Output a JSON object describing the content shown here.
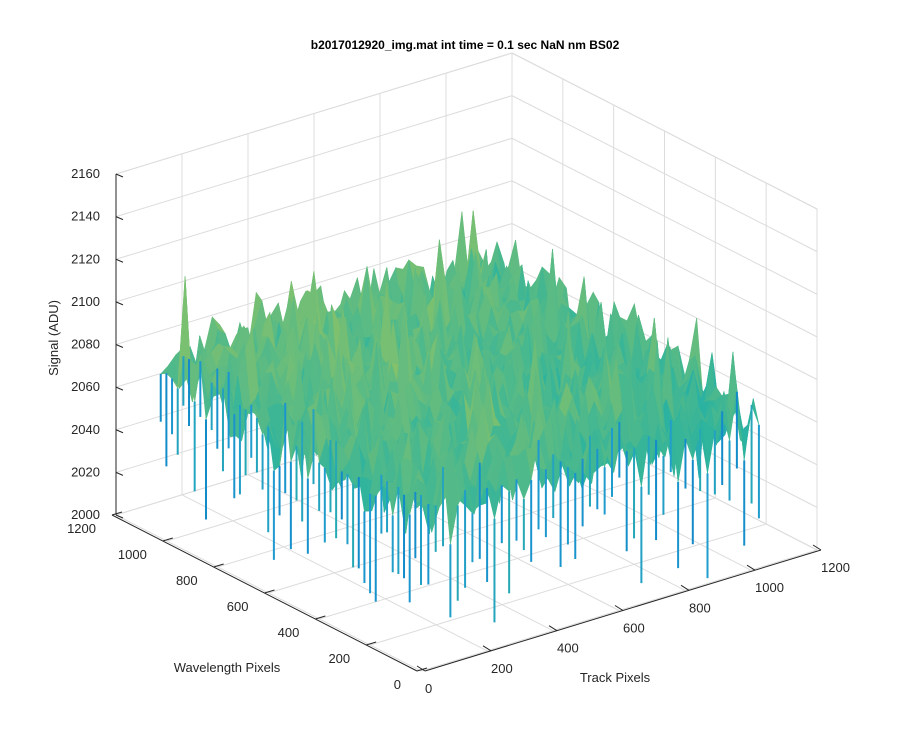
{
  "chart_data": {
    "type": "surface",
    "title": "b2017012920_img.mat int time = 0.1 sec  NaN nm BS02",
    "xlabel": "Track Pixels",
    "ylabel": "Wavelength Pixels",
    "zlabel": "Signal (ADU)",
    "xlim": [
      0,
      1200
    ],
    "ylim": [
      0,
      1200
    ],
    "zlim": [
      2000,
      2160
    ],
    "xticks": [
      "0",
      "200",
      "400",
      "600",
      "800",
      "1000",
      "1200"
    ],
    "yticks": [
      "0",
      "200",
      "400",
      "600",
      "800",
      "1000",
      "1200"
    ],
    "zticks": [
      "2000",
      "2020",
      "2040",
      "2060",
      "2080",
      "2100",
      "2120",
      "2140",
      "2160"
    ],
    "data_extent": {
      "x": [
        0,
        1024
      ],
      "y": [
        0,
        1024
      ]
    },
    "signal_mean": 2075,
    "signal_range": [
      2010,
      2150
    ],
    "colormap": [
      "#0072bd",
      "#1f9bd0",
      "#2bb3a0",
      "#7cc070",
      "#c8c640",
      "#e6c93a"
    ],
    "grid": true,
    "view": "3d-isometric"
  }
}
